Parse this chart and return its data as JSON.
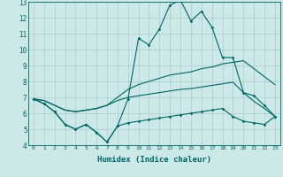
{
  "xlabel": "Humidex (Indice chaleur)",
  "ylabel": "",
  "background_color": "#cce8e8",
  "line_color": "#006666",
  "grid_color": "#aacccc",
  "xlim": [
    -0.5,
    23.5
  ],
  "ylim": [
    4,
    13
  ],
  "x_ticks": [
    0,
    1,
    2,
    3,
    4,
    5,
    6,
    7,
    8,
    9,
    10,
    11,
    12,
    13,
    14,
    15,
    16,
    17,
    18,
    19,
    20,
    21,
    22,
    23
  ],
  "y_ticks": [
    4,
    5,
    6,
    7,
    8,
    9,
    10,
    11,
    12,
    13
  ],
  "line1": [
    6.9,
    6.6,
    6.1,
    5.3,
    5.0,
    5.3,
    4.8,
    4.2,
    5.2,
    6.9,
    10.7,
    10.3,
    11.3,
    12.8,
    13.1,
    11.8,
    12.4,
    11.4,
    9.5,
    9.5,
    7.3,
    7.1,
    6.5,
    5.8
  ],
  "line2": [
    6.9,
    6.8,
    6.5,
    6.2,
    6.1,
    6.2,
    6.3,
    6.5,
    7.0,
    7.5,
    7.8,
    8.0,
    8.2,
    8.4,
    8.5,
    8.6,
    8.8,
    8.9,
    9.1,
    9.2,
    9.3,
    8.8,
    8.3,
    7.8
  ],
  "line3": [
    6.9,
    6.8,
    6.5,
    6.2,
    6.1,
    6.2,
    6.3,
    6.5,
    6.8,
    7.0,
    7.1,
    7.2,
    7.3,
    7.4,
    7.5,
    7.55,
    7.65,
    7.75,
    7.85,
    7.95,
    7.3,
    6.75,
    6.3,
    5.8
  ],
  "line4": [
    6.9,
    6.6,
    6.1,
    5.3,
    5.0,
    5.3,
    4.8,
    4.2,
    5.2,
    5.4,
    5.5,
    5.6,
    5.7,
    5.8,
    5.9,
    6.0,
    6.1,
    6.2,
    6.3,
    5.8,
    5.5,
    5.4,
    5.3,
    5.8
  ]
}
